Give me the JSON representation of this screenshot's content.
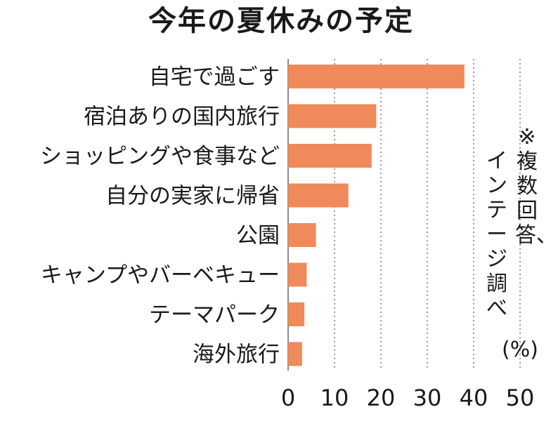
{
  "chart_data": {
    "type": "bar",
    "orientation": "horizontal",
    "title": "今年の夏休みの予定",
    "categories": [
      "自宅で過ごす",
      "宿泊ありの国内旅行",
      "ショッピングや食事など",
      "自分の実家に帰省",
      "公園",
      "キャンプやバーベキュー",
      "テーマパーク",
      "海外旅行"
    ],
    "values": [
      38,
      19,
      18,
      13,
      6,
      4,
      3.5,
      3
    ],
    "xlim": [
      0,
      50
    ],
    "xticks": [
      "0",
      "10",
      "20",
      "30",
      "40",
      "50"
    ],
    "unit": "(%)",
    "notes": [
      "※複数回答、",
      "インテージ調べ"
    ],
    "grid": "vertical dotted",
    "bar_color": "#f08a5a"
  }
}
